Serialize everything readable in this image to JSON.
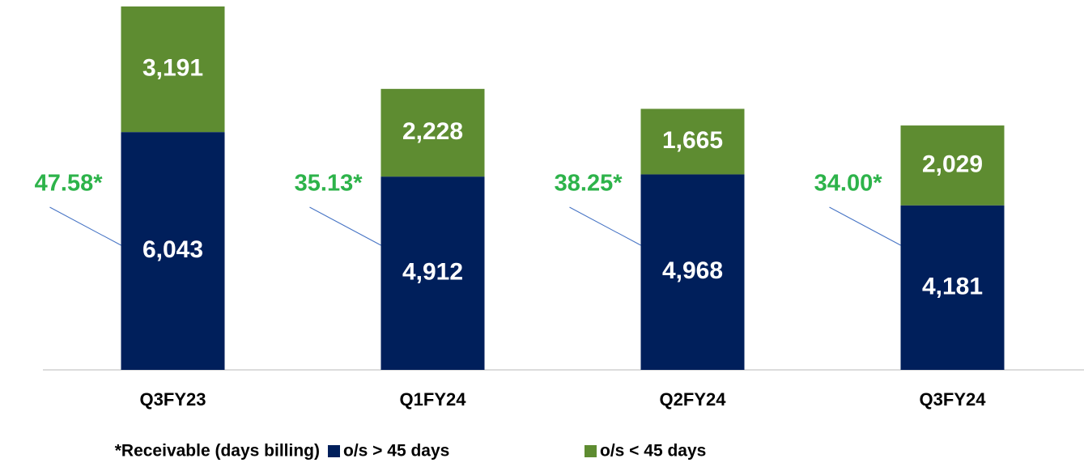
{
  "chart_data": {
    "type": "stacked_bar",
    "categories": [
      "Q3FY23",
      "Q1FY24",
      "Q2FY24",
      "Q3FY24"
    ],
    "series": [
      {
        "name": "o/s > 45 days",
        "color": "#001f5b",
        "values": [
          6043,
          4912,
          4968,
          4181
        ],
        "value_labels": [
          "6,043",
          "4,912",
          "4,968",
          "4,181"
        ]
      },
      {
        "name": "o/s < 45 days",
        "color": "#5e8c31",
        "values": [
          3191,
          2228,
          1665,
          2029
        ],
        "value_labels": [
          "3,191",
          "2,228",
          "1,665",
          "2,029"
        ]
      }
    ],
    "days_billing": {
      "values": [
        47.58,
        35.13,
        38.25,
        34.0
      ],
      "value_labels": [
        "47.58*",
        "35.13*",
        "38.25*",
        "34.00*"
      ],
      "color": "#2db34a"
    },
    "footnote": "*Receivable (days billing)"
  }
}
